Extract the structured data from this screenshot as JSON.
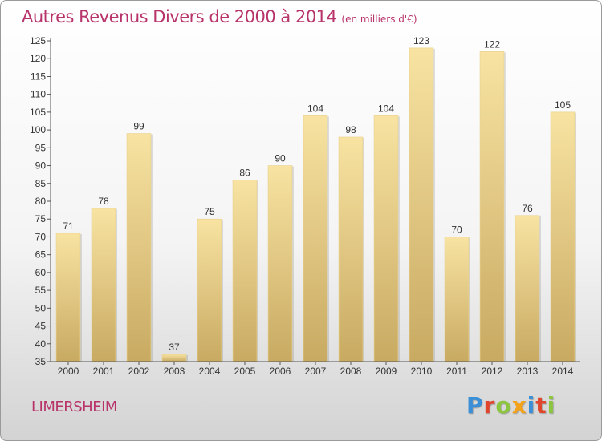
{
  "header": {
    "title": "Autres Revenus Divers de 2000 à 2014",
    "subtitle": "(en milliers d'€)"
  },
  "footer": {
    "commune": "LIMERSHEIM",
    "brand_letters": [
      "P",
      "r",
      "o",
      "x",
      "i",
      "t",
      "i"
    ],
    "brand_colors": [
      "#3a8fd6",
      "#e0462c",
      "#8cc63f",
      "#f3a21b",
      "#3a8fd6",
      "#e0462c",
      "#8cc63f"
    ]
  },
  "colors": {
    "title": "#b8336a",
    "bar_light": "#f8e3a2",
    "bar_dark": "#c8aa62"
  },
  "chart_data": {
    "type": "bar",
    "title": "Autres Revenus Divers de 2000 à 2014",
    "subtitle": "(en milliers d'€)",
    "categories": [
      "2000",
      "2001",
      "2002",
      "2003",
      "2004",
      "2005",
      "2006",
      "2007",
      "2008",
      "2009",
      "2010",
      "2011",
      "2012",
      "2013",
      "2014"
    ],
    "values": [
      71,
      78,
      99,
      37,
      75,
      86,
      90,
      104,
      98,
      104,
      123,
      70,
      122,
      76,
      105
    ],
    "xlabel": "",
    "ylabel": "",
    "ylim": [
      35,
      125
    ],
    "yticks": [
      35,
      40,
      45,
      50,
      55,
      60,
      65,
      70,
      75,
      80,
      85,
      90,
      95,
      100,
      105,
      110,
      115,
      120,
      125
    ],
    "grid": false,
    "legend": "none"
  }
}
